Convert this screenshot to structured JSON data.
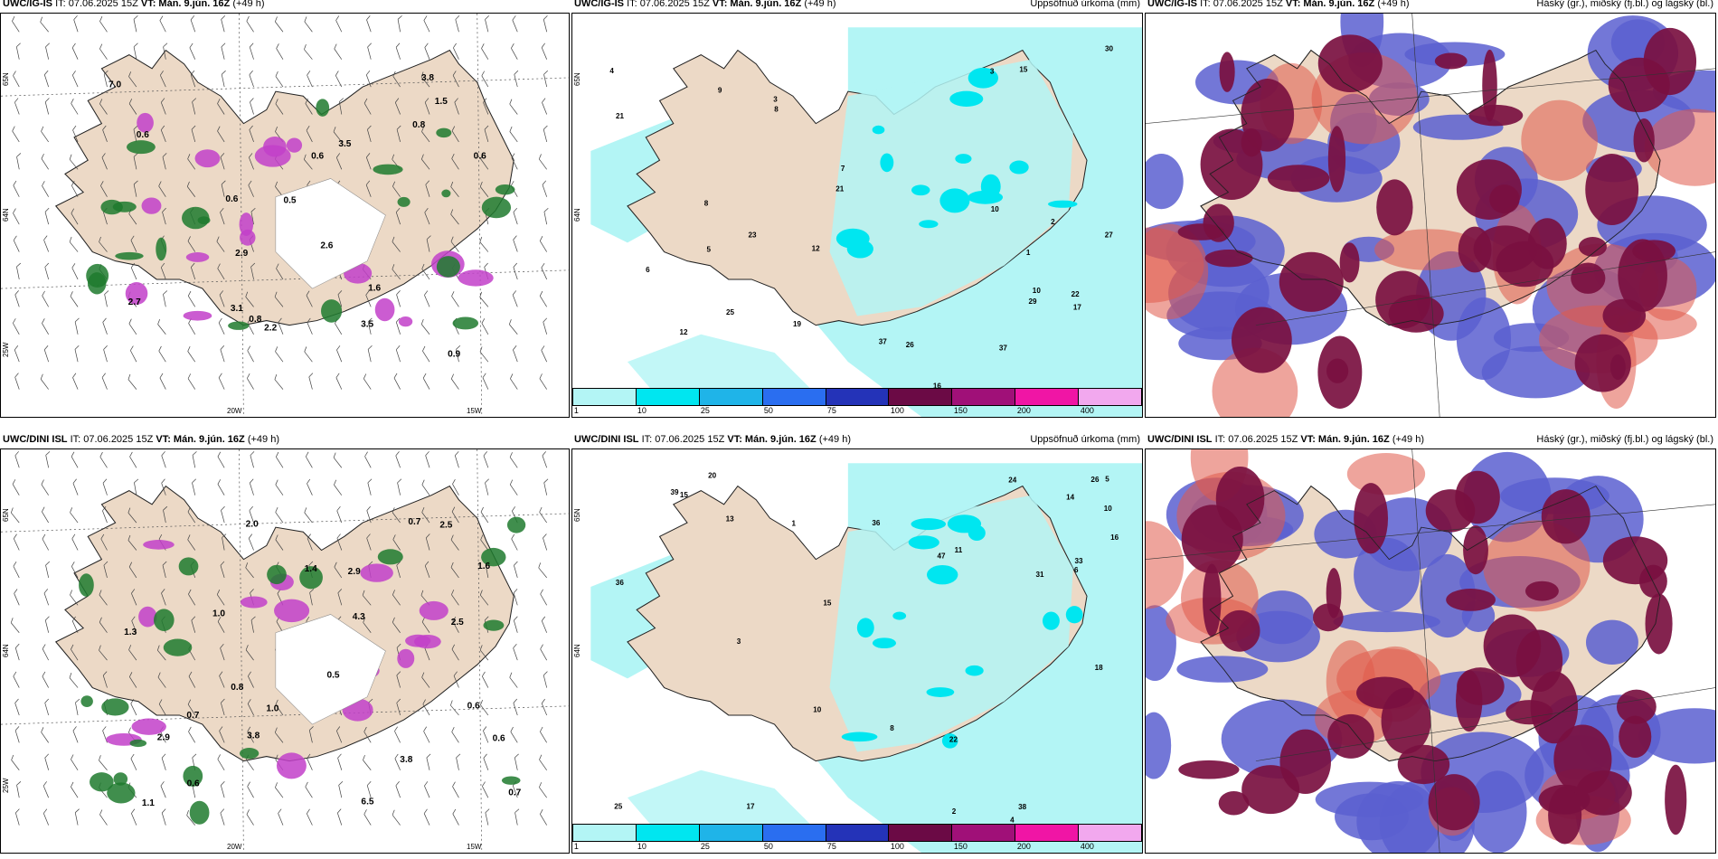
{
  "panels": [
    {
      "id": "p1",
      "model": "UWC/IG-IS",
      "it": "IT: 07.06.2025 15Z",
      "vt": "VT: Mán. 9.jún. 16Z",
      "lead": "(+49 h)",
      "right": "",
      "lat_labels": [
        "65N",
        "64N",
        "25W"
      ],
      "lon_labels": [
        "20W",
        "15W"
      ],
      "values": [
        "0.6",
        "0.6",
        "0.8",
        "3.1",
        "2.9",
        "0.9",
        "0.6",
        "0.5",
        "3.5",
        "1.5",
        "3.8",
        "0.6",
        "2.6",
        "1.6",
        "0.8",
        "7.0",
        "2.2",
        "2.7",
        "3.5"
      ]
    },
    {
      "id": "p2",
      "model": "UWC/IG-IS",
      "it": "IT: 07.06.2025 15Z",
      "vt": "VT: Mán. 9.jún. 16Z",
      "lead": "(+49 h)",
      "right": "Uppsöfnuð úrkoma (mm)",
      "lat_labels": [
        "65N",
        "64N"
      ],
      "values": [
        "3",
        "3",
        "10",
        "5",
        "8",
        "2",
        "16",
        "37",
        "21",
        "12",
        "27",
        "17",
        "29",
        "23",
        "26",
        "25",
        "21",
        "15",
        "30",
        "37",
        "22",
        "19",
        "12",
        "9",
        "10",
        "8",
        "6",
        "7",
        "4",
        "1"
      ],
      "colorbar": [
        "1",
        "10",
        "25",
        "50",
        "75",
        "100",
        "150",
        "200",
        "400"
      ]
    },
    {
      "id": "p3",
      "model": "UWC/IG-IS",
      "it": "IT: 07.06.2025 15Z",
      "vt": "VT: Mán. 9.jún. 16Z",
      "lead": "(+49 h)",
      "right": "Háský (gr.), miðský (fj.bl.) og lágský (bl.)"
    },
    {
      "id": "p4",
      "model": "UWC/DINI ISL",
      "it": "IT: 07.06.2025 15Z",
      "vt": "VT: Mán. 9.jún. 16Z",
      "lead": "(+49 h)",
      "right": "",
      "lat_labels": [
        "65N",
        "64N",
        "25W"
      ],
      "lon_labels": [
        "20W",
        "15W"
      ],
      "values": [
        "1.0",
        "0.7",
        "0.6",
        "1.6",
        "1.0",
        "0.6",
        "2.5",
        "3.8",
        "2.9",
        "0.5",
        "0.8",
        "1.3",
        "2.0",
        "1.4",
        "0.7",
        "2.9",
        "0.6",
        "0.7",
        "4.3",
        "2.5",
        "1.1",
        "3.8",
        "6.5"
      ]
    },
    {
      "id": "p5",
      "model": "UWC/DINI ISL",
      "it": "IT: 07.06.2025 15Z",
      "vt": "VT: Mán. 9.jún. 16Z",
      "lead": "(+49 h)",
      "right": "Uppsöfnuð úrkoma (mm)",
      "lat_labels": [
        "65N",
        "64N"
      ],
      "values": [
        "3",
        "5",
        "36",
        "24",
        "17",
        "33",
        "10",
        "11",
        "25",
        "15",
        "36",
        "22",
        "47",
        "39",
        "20",
        "38",
        "31",
        "26",
        "18",
        "16",
        "13",
        "15",
        "14",
        "10",
        "8",
        "6",
        "4",
        "2",
        "1"
      ],
      "colorbar": [
        "1",
        "10",
        "25",
        "50",
        "75",
        "100",
        "150",
        "200",
        "400"
      ]
    },
    {
      "id": "p6",
      "model": "UWC/DINI ISL",
      "it": "IT: 07.06.2025 15Z",
      "vt": "VT: Mán. 9.jún. 16Z",
      "lead": "(+49 h)",
      "right": "Háský (gr.), miðský (fj.bl.) og lágský (bl.)"
    }
  ],
  "colors": {
    "land": "#ecd9c6",
    "precip_light": "#b3f5f5",
    "precip_cyan": "#00e6f0",
    "cloud_low": "#5a5fd0",
    "cloud_mid": "#7a1040",
    "cloud_high": "#e05a4a",
    "shower_green": "#1e7a2e",
    "shower_purple": "#c23fc9",
    "colorbar": [
      "#b3f5f5",
      "#00e6f0",
      "#1fb4e8",
      "#2a6ef0",
      "#2433b8",
      "#6b0a45",
      "#a01078",
      "#f015a5",
      "#f2a8ee"
    ]
  }
}
